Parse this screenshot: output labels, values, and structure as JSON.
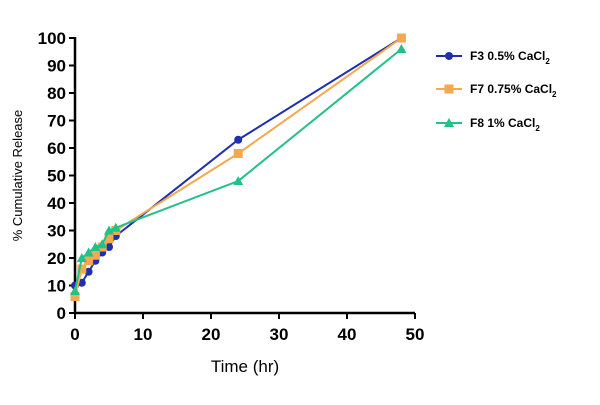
{
  "chart_data": {
    "type": "line",
    "title": "",
    "xlabel": "Time (hr)",
    "ylabel": "% Cumulative Release",
    "xlim": [
      0,
      50
    ],
    "ylim": [
      0,
      100
    ],
    "xticks": [
      0,
      10,
      20,
      30,
      40,
      50
    ],
    "yticks": [
      0,
      10,
      20,
      30,
      40,
      50,
      60,
      70,
      80,
      90,
      100
    ],
    "grid": false,
    "legend_position": "right",
    "series": [
      {
        "name": "F3 0.5% CaCl",
        "name_subscript": "2",
        "color": "#1f2fb0",
        "marker": "circle",
        "x": [
          0,
          1,
          2,
          3,
          4,
          5,
          6,
          24,
          48
        ],
        "y": [
          10,
          11,
          15,
          19,
          22,
          24,
          28,
          63,
          100
        ]
      },
      {
        "name": "F7 0.75% CaCl",
        "name_subscript": "2",
        "color": "#f5a84f",
        "marker": "square",
        "x": [
          0,
          1,
          2,
          3,
          4,
          5,
          6,
          24,
          48
        ],
        "y": [
          6,
          16,
          19,
          21,
          24,
          27,
          30,
          58,
          100
        ]
      },
      {
        "name": "F8 1% CaCl",
        "name_subscript": "2",
        "color": "#22c187",
        "marker": "triangle",
        "x": [
          0,
          1,
          2,
          3,
          4,
          5,
          6,
          24,
          48
        ],
        "y": [
          8,
          20,
          22,
          24,
          25,
          30,
          31,
          48,
          96
        ]
      }
    ]
  }
}
